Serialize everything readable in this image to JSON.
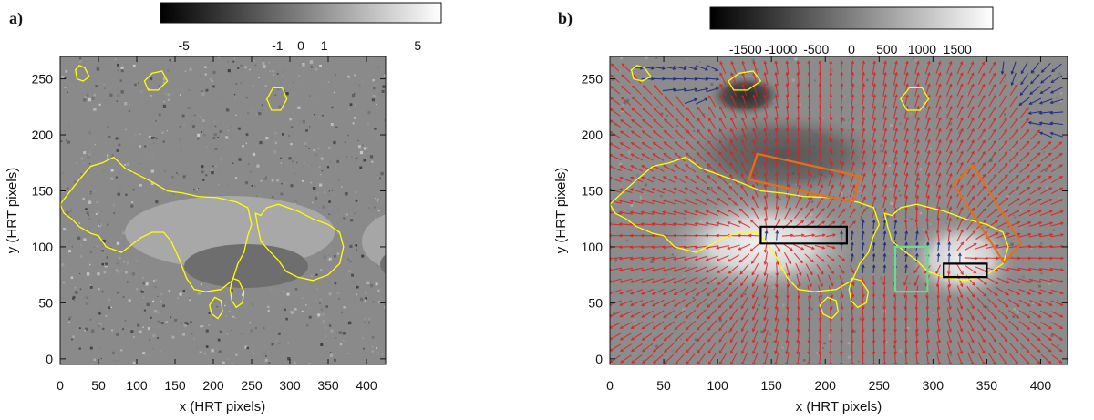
{
  "chart_data": [
    {
      "type": "heatmap",
      "panel_label": "a)",
      "xlabel": "x (HRT pixels)",
      "ylabel": "y (HRT pixels)",
      "xlim": [
        0,
        425
      ],
      "ylim": [
        -5,
        270
      ],
      "xticks": [
        0,
        50,
        100,
        150,
        200,
        250,
        300,
        350,
        400
      ],
      "yticks": [
        0,
        50,
        100,
        150,
        200,
        250
      ],
      "colorbar": {
        "range": [
          -6,
          6
        ],
        "ticks": [
          -5,
          -1,
          0,
          1,
          5
        ],
        "tick_labels": [
          "-5",
          "-1",
          "0",
          "1",
          "5"
        ],
        "colormap": "grayscale"
      },
      "contour_color": "#ffff00",
      "contours": [
        [
          [
            0,
            138
          ],
          [
            10,
            147
          ],
          [
            25,
            160
          ],
          [
            40,
            172
          ],
          [
            55,
            175
          ],
          [
            70,
            180
          ],
          [
            85,
            170
          ],
          [
            100,
            165
          ],
          [
            120,
            158
          ],
          [
            140,
            150
          ],
          [
            160,
            148
          ],
          [
            180,
            145
          ],
          [
            205,
            144
          ],
          [
            230,
            140
          ],
          [
            245,
            135
          ],
          [
            250,
            120
          ],
          [
            245,
            110
          ],
          [
            240,
            95
          ],
          [
            232,
            85
          ],
          [
            225,
            70
          ],
          [
            210,
            62
          ],
          [
            190,
            60
          ],
          [
            175,
            62
          ],
          [
            165,
            72
          ],
          [
            155,
            90
          ],
          [
            145,
            105
          ],
          [
            135,
            113
          ],
          [
            120,
            113
          ],
          [
            105,
            108
          ],
          [
            90,
            100
          ],
          [
            80,
            95
          ],
          [
            60,
            100
          ],
          [
            50,
            110
          ],
          [
            40,
            112
          ],
          [
            25,
            118
          ],
          [
            15,
            125
          ],
          [
            5,
            130
          ],
          [
            0,
            138
          ]
        ],
        [
          [
            255,
            130
          ],
          [
            262,
            128
          ],
          [
            270,
            135
          ],
          [
            285,
            138
          ],
          [
            310,
            132
          ],
          [
            330,
            125
          ],
          [
            350,
            120
          ],
          [
            365,
            113
          ],
          [
            370,
            100
          ],
          [
            365,
            85
          ],
          [
            350,
            75
          ],
          [
            330,
            70
          ],
          [
            310,
            73
          ],
          [
            295,
            78
          ],
          [
            285,
            88
          ],
          [
            275,
            95
          ],
          [
            262,
            105
          ],
          [
            258,
            118
          ],
          [
            255,
            130
          ]
        ],
        [
          [
            20,
            258
          ],
          [
            25,
            262
          ],
          [
            32,
            260
          ],
          [
            38,
            252
          ],
          [
            30,
            248
          ],
          [
            22,
            250
          ],
          [
            20,
            258
          ]
        ],
        [
          [
            110,
            248
          ],
          [
            120,
            255
          ],
          [
            133,
            257
          ],
          [
            140,
            248
          ],
          [
            128,
            240
          ],
          [
            115,
            240
          ],
          [
            110,
            248
          ]
        ],
        [
          [
            270,
            232
          ],
          [
            278,
            242
          ],
          [
            290,
            242
          ],
          [
            296,
            232
          ],
          [
            288,
            222
          ],
          [
            276,
            222
          ],
          [
            270,
            232
          ]
        ],
        [
          [
            225,
            72
          ],
          [
            233,
            70
          ],
          [
            240,
            60
          ],
          [
            238,
            50
          ],
          [
            230,
            46
          ],
          [
            224,
            52
          ],
          [
            222,
            62
          ],
          [
            225,
            72
          ]
        ],
        [
          [
            195,
            48
          ],
          [
            202,
            55
          ],
          [
            210,
            52
          ],
          [
            212,
            42
          ],
          [
            206,
            36
          ],
          [
            198,
            40
          ],
          [
            195,
            48
          ]
        ]
      ],
      "rectangles": []
    },
    {
      "type": "heatmap",
      "panel_label": "b)",
      "xlabel": "x (HRT pixels)",
      "ylabel": "y (HRT pixels)",
      "xlim": [
        0,
        425
      ],
      "ylim": [
        -5,
        270
      ],
      "xticks": [
        0,
        50,
        100,
        150,
        200,
        250,
        300,
        350,
        400
      ],
      "yticks": [
        0,
        50,
        100,
        150,
        200,
        250
      ],
      "colorbar": {
        "range": [
          -2000,
          2000
        ],
        "ticks": [
          -1500,
          -1000,
          -500,
          0,
          500,
          1000,
          1500
        ],
        "tick_labels": [
          "-1500",
          "-1000",
          "-500",
          "0",
          "500",
          "1000",
          "1500"
        ],
        "colormap": "grayscale"
      },
      "contour_color": "#ffff00",
      "contours": [
        [
          [
            0,
            138
          ],
          [
            10,
            147
          ],
          [
            25,
            160
          ],
          [
            40,
            172
          ],
          [
            55,
            175
          ],
          [
            70,
            180
          ],
          [
            85,
            170
          ],
          [
            100,
            165
          ],
          [
            120,
            158
          ],
          [
            140,
            150
          ],
          [
            160,
            148
          ],
          [
            180,
            145
          ],
          [
            205,
            144
          ],
          [
            230,
            140
          ],
          [
            245,
            135
          ],
          [
            250,
            120
          ],
          [
            245,
            110
          ],
          [
            240,
            95
          ],
          [
            232,
            85
          ],
          [
            225,
            70
          ],
          [
            210,
            62
          ],
          [
            190,
            60
          ],
          [
            175,
            62
          ],
          [
            165,
            72
          ],
          [
            155,
            90
          ],
          [
            145,
            105
          ],
          [
            135,
            113
          ],
          [
            120,
            113
          ],
          [
            105,
            108
          ],
          [
            90,
            100
          ],
          [
            80,
            95
          ],
          [
            60,
            100
          ],
          [
            50,
            110
          ],
          [
            40,
            112
          ],
          [
            25,
            118
          ],
          [
            15,
            125
          ],
          [
            5,
            130
          ],
          [
            0,
            138
          ]
        ],
        [
          [
            255,
            130
          ],
          [
            262,
            128
          ],
          [
            270,
            135
          ],
          [
            285,
            138
          ],
          [
            310,
            132
          ],
          [
            330,
            125
          ],
          [
            350,
            120
          ],
          [
            365,
            113
          ],
          [
            370,
            100
          ],
          [
            365,
            85
          ],
          [
            350,
            75
          ],
          [
            330,
            70
          ],
          [
            310,
            73
          ],
          [
            295,
            78
          ],
          [
            285,
            88
          ],
          [
            275,
            95
          ],
          [
            262,
            105
          ],
          [
            258,
            118
          ],
          [
            255,
            130
          ]
        ],
        [
          [
            20,
            258
          ],
          [
            25,
            262
          ],
          [
            32,
            260
          ],
          [
            38,
            252
          ],
          [
            30,
            248
          ],
          [
            22,
            250
          ],
          [
            20,
            258
          ]
        ],
        [
          [
            110,
            248
          ],
          [
            120,
            255
          ],
          [
            133,
            257
          ],
          [
            140,
            248
          ],
          [
            128,
            240
          ],
          [
            115,
            240
          ],
          [
            110,
            248
          ]
        ],
        [
          [
            270,
            232
          ],
          [
            278,
            242
          ],
          [
            290,
            242
          ],
          [
            296,
            232
          ],
          [
            288,
            222
          ],
          [
            276,
            222
          ],
          [
            270,
            232
          ]
        ],
        [
          [
            225,
            72
          ],
          [
            233,
            70
          ],
          [
            240,
            60
          ],
          [
            238,
            50
          ],
          [
            230,
            46
          ],
          [
            224,
            52
          ],
          [
            222,
            62
          ],
          [
            225,
            72
          ]
        ],
        [
          [
            195,
            48
          ],
          [
            202,
            55
          ],
          [
            210,
            52
          ],
          [
            212,
            42
          ],
          [
            206,
            36
          ],
          [
            198,
            40
          ],
          [
            195,
            48
          ]
        ]
      ],
      "rectangles": [
        {
          "color": "#000000",
          "corners": [
            [
              140,
              103
            ],
            [
              220,
              103
            ],
            [
              220,
              118
            ],
            [
              140,
              118
            ]
          ]
        },
        {
          "color": "#000000",
          "corners": [
            [
              310,
              73
            ],
            [
              350,
              73
            ],
            [
              350,
              85
            ],
            [
              310,
              85
            ]
          ]
        },
        {
          "color": "#66dd88",
          "corners": [
            [
              265,
              60
            ],
            [
              295,
              60
            ],
            [
              295,
              100
            ],
            [
              265,
              100
            ]
          ]
        },
        {
          "color": "#e07020",
          "corners": [
            [
              129,
              160
            ],
            [
              137,
              183
            ],
            [
              232,
              163
            ],
            [
              226,
              140
            ]
          ]
        },
        {
          "color": "#e07020",
          "corners": [
            [
              319,
              156
            ],
            [
              337,
              173
            ],
            [
              382,
              103
            ],
            [
              366,
              86
            ]
          ]
        }
      ],
      "vector_field": {
        "positive_color": "#e02020",
        "negative_color": "#1a237e",
        "sources": [
          {
            "x": 140,
            "y": 110,
            "strength": 1
          },
          {
            "x": 328,
            "y": 90,
            "strength": 0.8
          }
        ],
        "sinks": [
          {
            "x": 118,
            "y": 248,
            "strength": 0.8
          },
          {
            "x": 370,
            "y": 215,
            "strength": 0.7
          }
        ]
      }
    }
  ]
}
